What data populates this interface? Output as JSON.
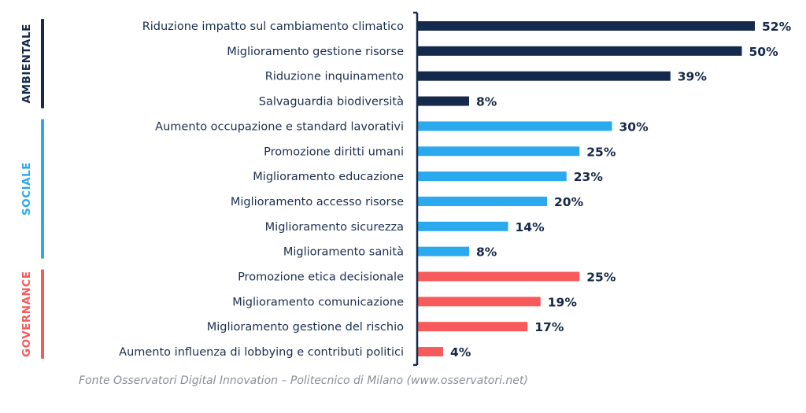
{
  "chart_data": {
    "type": "bar",
    "orientation": "horizontal",
    "categories": [
      "Riduzione impatto sul cambiamento climatico",
      "Miglioramento gestione risorse",
      "Riduzione inquinamento",
      "Salvaguardia biodiversità",
      "Aumento occupazione e standard lavorativi",
      "Promozione diritti umani",
      "Miglioramento educazione",
      "Miglioramento accesso risorse",
      "Miglioramento sicurezza",
      "Miglioramento sanità",
      "Promozione etica decisionale",
      "Miglioramento comunicazione",
      "Miglioramento gestione del rischio",
      "Aumento influenza di lobbying e contributi politici"
    ],
    "values": [
      52,
      50,
      39,
      8,
      30,
      25,
      23,
      20,
      14,
      8,
      25,
      19,
      17,
      4
    ],
    "value_labels": [
      "52%",
      "50%",
      "39%",
      "8%",
      "30%",
      "25%",
      "23%",
      "20%",
      "14%",
      "8%",
      "25%",
      "19%",
      "17%",
      "4%"
    ],
    "unit": "%",
    "groups": [
      {
        "name": "AMBIENTALE",
        "start": 0,
        "count": 4,
        "color": "#14294b"
      },
      {
        "name": "SOCIALE",
        "start": 4,
        "count": 6,
        "color": "#2aa9ee"
      },
      {
        "name": "GOVERNANCE",
        "start": 10,
        "count": 4,
        "color": "#f65a5b"
      }
    ],
    "xlim": [
      0,
      52
    ],
    "grid": false,
    "legend": "none"
  },
  "source_note": "Fonte Osservatori Digital Innovation – Politecnico di Milano (www.osservatori.net)"
}
